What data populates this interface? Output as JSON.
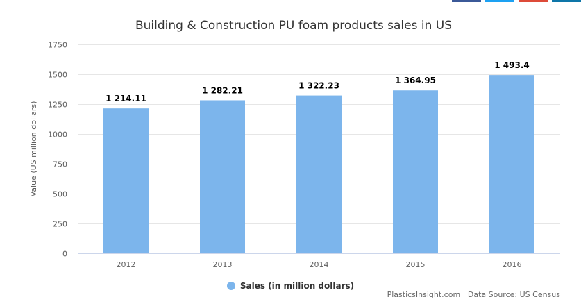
{
  "share_strip_colors": [
    "#3b5998",
    "#1da1f2",
    "#dd4b39",
    "#0e76a8"
  ],
  "chart_data": {
    "type": "bar",
    "title": "Building & Construction PU foam products sales in US",
    "ylabel": "Value (US million dollars)",
    "xlabel": "",
    "ylim": [
      0,
      1750
    ],
    "yticks": [
      0,
      250,
      500,
      750,
      1000,
      1250,
      1500,
      1750
    ],
    "grid": true,
    "categories": [
      "2012",
      "2013",
      "2014",
      "2015",
      "2016"
    ],
    "series": [
      {
        "name": "Sales (in million dollars)",
        "color": "#7cb5ec",
        "values": [
          1214.11,
          1282.21,
          1322.23,
          1364.95,
          1493.4
        ],
        "labels": [
          "1 214.11",
          "1 282.21",
          "1 322.23",
          "1 364.95",
          "1 493.4"
        ]
      }
    ],
    "legend": "bottom-center"
  },
  "credits": "PlasticsInsight.com | Data Source: US Census"
}
